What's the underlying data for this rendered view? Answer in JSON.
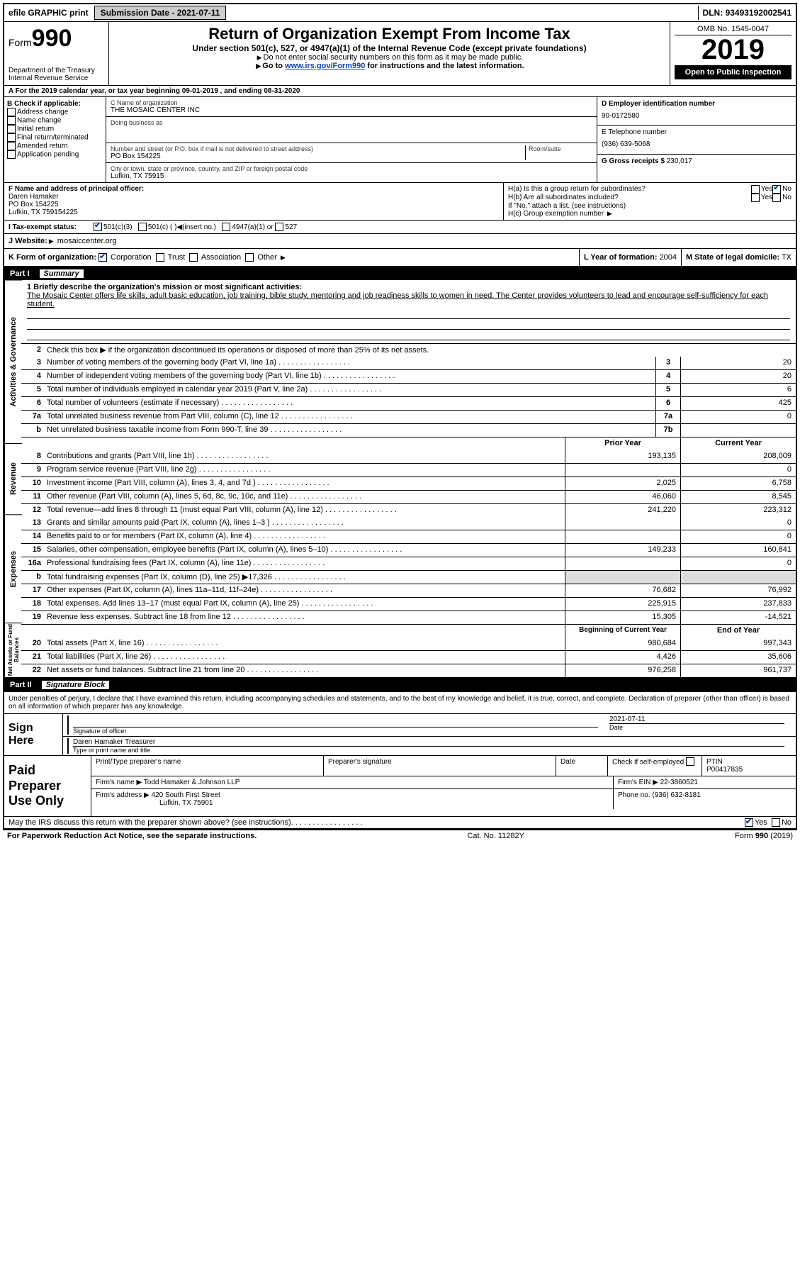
{
  "topbar": {
    "efile": "efile GRAPHIC print",
    "submission_label": "Submission Date",
    "submission_date": "2021-07-11",
    "dln_label": "DLN:",
    "dln": "93493192002541"
  },
  "header": {
    "form_label": "Form",
    "form_num": "990",
    "dept": "Department of the Treasury\nInternal Revenue Service",
    "title": "Return of Organization Exempt From Income Tax",
    "sub": "Under section 501(c), 527, or 4947(a)(1) of the Internal Revenue Code (except private foundations)",
    "note1": "Do not enter social security numbers on this form as it may be made public.",
    "note2_pre": "Go to ",
    "note2_link": "www.irs.gov/Form990",
    "note2_post": " for instructions and the latest information.",
    "omb": "OMB No. 1545-0047",
    "year": "2019",
    "open": "Open to Public Inspection"
  },
  "rowA": {
    "text": "A For the 2019 calendar year, or tax year beginning 09-01-2019    , and ending 08-31-2020"
  },
  "colB": {
    "title": "B Check if applicable:",
    "items": [
      "Address change",
      "Name change",
      "Initial return",
      "Final return/terminated",
      "Amended return",
      "Application pending"
    ]
  },
  "colC": {
    "name_label": "C Name of organization",
    "name": "THE MOSAIC CENTER INC",
    "dba_label": "Doing business as",
    "dba": "",
    "addr_label": "Number and street (or P.O. box if mail is not delivered to street address)",
    "room_label": "Room/suite",
    "addr": "PO Box 154225",
    "city_label": "City or town, state or province, country, and ZIP or foreign postal code",
    "city": "Lufkin, TX  75915"
  },
  "colD": {
    "label": "D Employer identification number",
    "value": "90-0172580",
    "e_label": "E Telephone number",
    "e_value": "(936) 639-5068",
    "g_label": "G Gross receipts $",
    "g_value": "230,017"
  },
  "rowF": {
    "label": "F  Name and address of principal officer:",
    "name": "Daren Hamaker",
    "addr1": "PO Box 154225",
    "addr2": "Lufkin, TX  759154225"
  },
  "rowH": {
    "ha": "H(a)  Is this a group return for subordinates?",
    "ha_no": "No",
    "hb": "H(b)  Are all subordinates included?",
    "hb_note": "If \"No,\" attach a list. (see instructions)",
    "hc": "H(c)  Group exemption number"
  },
  "rowI": {
    "label": "I  Tax-exempt status:",
    "o1": "501(c)(3)",
    "o2": "501(c) (  )",
    "o2b": "(insert no.)",
    "o3": "4947(a)(1) or",
    "o4": "527"
  },
  "rowJ": {
    "label": "J  Website:",
    "value": "mosaiccenter.org"
  },
  "rowK": {
    "label": "K Form of organization:",
    "o1": "Corporation",
    "o2": "Trust",
    "o3": "Association",
    "o4": "Other"
  },
  "rowL": {
    "label": "L Year of formation:",
    "value": "2004"
  },
  "rowM": {
    "label": "M State of legal domicile:",
    "value": "TX"
  },
  "part1": {
    "num": "Part I",
    "title": "Summary"
  },
  "mission": {
    "intro": "1  Briefly describe the organization's mission or most significant activities:",
    "text": "The Mosaic Center offers life skills, adult basic education, job training, bible study, mentoring and job readiness skills to women in need. The Center provides volunteers to lead and encourage self-sufficiency for each student."
  },
  "line2": "Check this box ▶       if the organization discontinued its operations or disposed of more than 25% of its net assets.",
  "lines_gov": [
    {
      "n": "3",
      "t": "Number of voting members of the governing body (Part VI, line 1a)",
      "box": "3",
      "v": "20"
    },
    {
      "n": "4",
      "t": "Number of independent voting members of the governing body (Part VI, line 1b)",
      "box": "4",
      "v": "20"
    },
    {
      "n": "5",
      "t": "Total number of individuals employed in calendar year 2019 (Part V, line 2a)",
      "box": "5",
      "v": "6"
    },
    {
      "n": "6",
      "t": "Total number of volunteers (estimate if necessary)",
      "box": "6",
      "v": "425"
    },
    {
      "n": "7a",
      "t": "Total unrelated business revenue from Part VIII, column (C), line 12",
      "box": "7a",
      "v": "0"
    },
    {
      "n": "b",
      "t": "Net unrelated business taxable income from Form 990-T, line 39",
      "box": "7b",
      "v": ""
    }
  ],
  "col_hdrs": {
    "prior": "Prior Year",
    "current": "Current Year"
  },
  "lines_rev": [
    {
      "n": "8",
      "t": "Contributions and grants (Part VIII, line 1h)",
      "p": "193,135",
      "c": "208,009"
    },
    {
      "n": "9",
      "t": "Program service revenue (Part VIII, line 2g)",
      "p": "",
      "c": "0"
    },
    {
      "n": "10",
      "t": "Investment income (Part VIII, column (A), lines 3, 4, and 7d )",
      "p": "2,025",
      "c": "6,758"
    },
    {
      "n": "11",
      "t": "Other revenue (Part VIII, column (A), lines 5, 6d, 8c, 9c, 10c, and 11e)",
      "p": "46,060",
      "c": "8,545"
    },
    {
      "n": "12",
      "t": "Total revenue—add lines 8 through 11 (must equal Part VIII, column (A), line 12)",
      "p": "241,220",
      "c": "223,312"
    }
  ],
  "lines_exp": [
    {
      "n": "13",
      "t": "Grants and similar amounts paid (Part IX, column (A), lines 1–3 )",
      "p": "",
      "c": "0"
    },
    {
      "n": "14",
      "t": "Benefits paid to or for members (Part IX, column (A), line 4)",
      "p": "",
      "c": "0"
    },
    {
      "n": "15",
      "t": "Salaries, other compensation, employee benefits (Part IX, column (A), lines 5–10)",
      "p": "149,233",
      "c": "160,841"
    },
    {
      "n": "16a",
      "t": "Professional fundraising fees (Part IX, column (A), line 11e)",
      "p": "",
      "c": "0"
    },
    {
      "n": "b",
      "t": "Total fundraising expenses (Part IX, column (D), line 25) ▶17,326",
      "p": "shade",
      "c": "shade"
    },
    {
      "n": "17",
      "t": "Other expenses (Part IX, column (A), lines 11a–11d, 11f–24e)",
      "p": "76,682",
      "c": "76,992"
    },
    {
      "n": "18",
      "t": "Total expenses. Add lines 13–17 (must equal Part IX, column (A), line 25)",
      "p": "225,915",
      "c": "237,833"
    },
    {
      "n": "19",
      "t": "Revenue less expenses. Subtract line 18 from line 12",
      "p": "15,305",
      "c": "-14,521"
    }
  ],
  "col_hdrs2": {
    "begin": "Beginning of Current Year",
    "end": "End of Year"
  },
  "lines_net": [
    {
      "n": "20",
      "t": "Total assets (Part X, line 16)",
      "p": "980,684",
      "c": "997,343"
    },
    {
      "n": "21",
      "t": "Total liabilities (Part X, line 26)",
      "p": "4,426",
      "c": "35,606"
    },
    {
      "n": "22",
      "t": "Net assets or fund balances. Subtract line 21 from line 20",
      "p": "976,258",
      "c": "961,737"
    }
  ],
  "vtabs": {
    "gov": "Activities & Governance",
    "rev": "Revenue",
    "exp": "Expenses",
    "net": "Net Assets or Fund Balances"
  },
  "part2": {
    "num": "Part II",
    "title": "Signature Block"
  },
  "penalties": "Under penalties of perjury, I declare that I have examined this return, including accompanying schedules and statements, and to the best of my knowledge and belief, it is true, correct, and complete. Declaration of preparer (other than officer) is based on all information of which preparer has any knowledge.",
  "sign": {
    "label": "Sign Here",
    "sig_of": "Signature of officer",
    "date_label": "Date",
    "date": "2021-07-11",
    "name": "Daren Hamaker  Treasurer",
    "name_label": "Type or print name and title"
  },
  "prep": {
    "label": "Paid Preparer Use Only",
    "r1": {
      "a": "Print/Type preparer's name",
      "b": "Preparer's signature",
      "c": "Date",
      "d": "Check        if self-employed",
      "e": "PTIN\nP00417835"
    },
    "r2": {
      "a": "Firm's name     ▶  Todd Hamaker & Johnson LLP",
      "b": "Firm's EIN ▶ 22-3860521"
    },
    "r3": {
      "a": "Firm's address  ▶ 420 South First Street",
      "b": "Phone no. (936) 632-8181"
    },
    "r3b": "Lufkin, TX  75901"
  },
  "discuss": {
    "q": "May the IRS discuss this return with the preparer shown above? (see instructions)",
    "yes": "Yes",
    "no": "No"
  },
  "footer": {
    "left": "For Paperwork Reduction Act Notice, see the separate instructions.",
    "mid": "Cat. No. 11282Y",
    "right": "Form 990 (2019)"
  }
}
